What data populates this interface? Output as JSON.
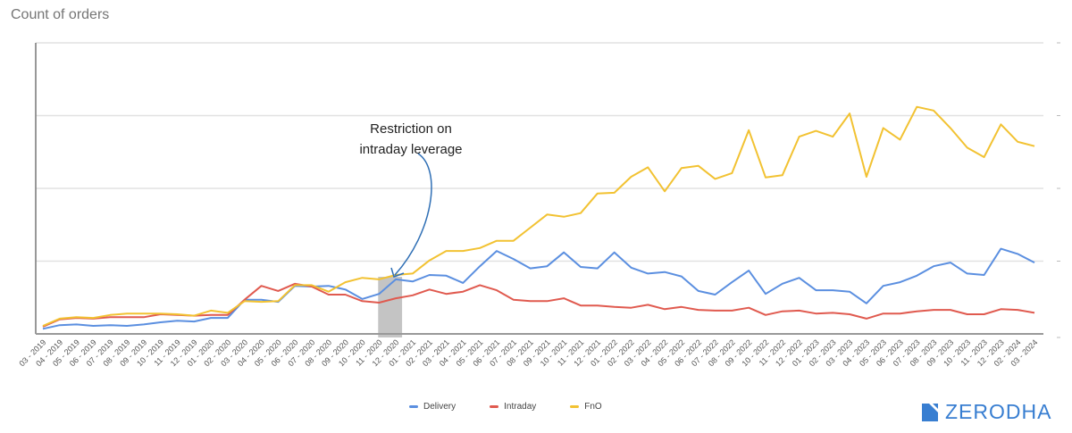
{
  "chart_data": {
    "type": "line",
    "title": "Count of orders",
    "xlabel": "",
    "ylabel": "",
    "ylim": [
      0,
      4
    ],
    "grid": true,
    "legend_position": "bottom",
    "categories": [
      "03 - 2019",
      "04 - 2019",
      "05 - 2019",
      "06 - 2019",
      "07 - 2019",
      "08 - 2019",
      "09 - 2019",
      "10 - 2019",
      "11 - 2019",
      "12 - 2019",
      "01 - 2020",
      "02 - 2020",
      "03 - 2020",
      "04 - 2020",
      "05 - 2020",
      "06 - 2020",
      "07 - 2020",
      "08 - 2020",
      "09 - 2020",
      "10 - 2020",
      "11 - 2020",
      "12 - 2020",
      "01 - 2021",
      "02 - 2021",
      "03 - 2021",
      "04 - 2021",
      "05 - 2021",
      "06 - 2021",
      "07 - 2021",
      "08 - 2021",
      "09 - 2021",
      "10 - 2021",
      "11 - 2021",
      "12 - 2021",
      "01 - 2022",
      "02 - 2022",
      "03 - 2022",
      "04 - 2022",
      "05 - 2022",
      "06 - 2022",
      "07 - 2022",
      "08 - 2022",
      "09 - 2022",
      "10 - 2022",
      "11 - 2022",
      "12 - 2022",
      "01 - 2023",
      "02 - 2023",
      "03 - 2023",
      "04 - 2023",
      "05 - 2023",
      "06 - 2023",
      "07 - 2023",
      "08 - 2023",
      "09 - 2023",
      "10 - 2023",
      "11 - 2023",
      "12 - 2023",
      "02 - 2024",
      "03 - 2024"
    ],
    "series": [
      {
        "name": "Delivery",
        "color": "#5b8fe0",
        "values": [
          0.07,
          0.12,
          0.13,
          0.11,
          0.12,
          0.11,
          0.13,
          0.16,
          0.18,
          0.17,
          0.22,
          0.22,
          0.47,
          0.47,
          0.44,
          0.66,
          0.65,
          0.66,
          0.61,
          0.48,
          0.55,
          0.75,
          0.72,
          0.81,
          0.8,
          0.7,
          0.93,
          1.14,
          1.03,
          0.9,
          0.93,
          1.12,
          0.92,
          0.9,
          1.12,
          0.91,
          0.83,
          0.85,
          0.79,
          0.59,
          0.54,
          0.71,
          0.87,
          0.55,
          0.69,
          0.77,
          0.6,
          0.6,
          0.58,
          0.42,
          0.66,
          0.71,
          0.8,
          0.93,
          0.98,
          0.83,
          0.81,
          1.17,
          1.1,
          0.98
        ]
      },
      {
        "name": "Intraday",
        "color": "#e05a4f",
        "values": [
          0.1,
          0.2,
          0.22,
          0.21,
          0.23,
          0.23,
          0.23,
          0.27,
          0.26,
          0.25,
          0.26,
          0.26,
          0.47,
          0.66,
          0.59,
          0.69,
          0.65,
          0.54,
          0.54,
          0.45,
          0.43,
          0.49,
          0.53,
          0.61,
          0.55,
          0.58,
          0.67,
          0.6,
          0.47,
          0.45,
          0.45,
          0.49,
          0.39,
          0.39,
          0.37,
          0.36,
          0.4,
          0.34,
          0.37,
          0.33,
          0.32,
          0.32,
          0.36,
          0.26,
          0.31,
          0.32,
          0.28,
          0.29,
          0.27,
          0.21,
          0.28,
          0.28,
          0.31,
          0.33,
          0.33,
          0.27,
          0.27,
          0.34,
          0.33,
          0.29
        ]
      },
      {
        "name": "FnO",
        "color": "#f2c232",
        "values": [
          0.11,
          0.21,
          0.23,
          0.22,
          0.26,
          0.28,
          0.28,
          0.28,
          0.27,
          0.25,
          0.32,
          0.29,
          0.45,
          0.44,
          0.45,
          0.67,
          0.67,
          0.58,
          0.71,
          0.77,
          0.75,
          0.81,
          0.83,
          1.01,
          1.14,
          1.14,
          1.18,
          1.28,
          1.28,
          1.46,
          1.64,
          1.61,
          1.66,
          1.93,
          1.94,
          2.16,
          2.29,
          1.96,
          2.28,
          2.31,
          2.13,
          2.21,
          2.8,
          2.15,
          2.18,
          2.71,
          2.79,
          2.71,
          3.03,
          2.16,
          2.83,
          2.67,
          3.12,
          3.07,
          2.83,
          2.56,
          2.43,
          2.88,
          2.64,
          2.58
        ]
      }
    ],
    "annotations": [
      {
        "text": "Restriction on intraday leverage",
        "highlight_range": [
          "11 - 2020",
          "12 - 2020"
        ]
      }
    ]
  },
  "annotation": {
    "line1": "Restriction on",
    "line2": "intraday leverage"
  },
  "brand": {
    "name": "ZERODHA",
    "color": "#387ed1"
  }
}
